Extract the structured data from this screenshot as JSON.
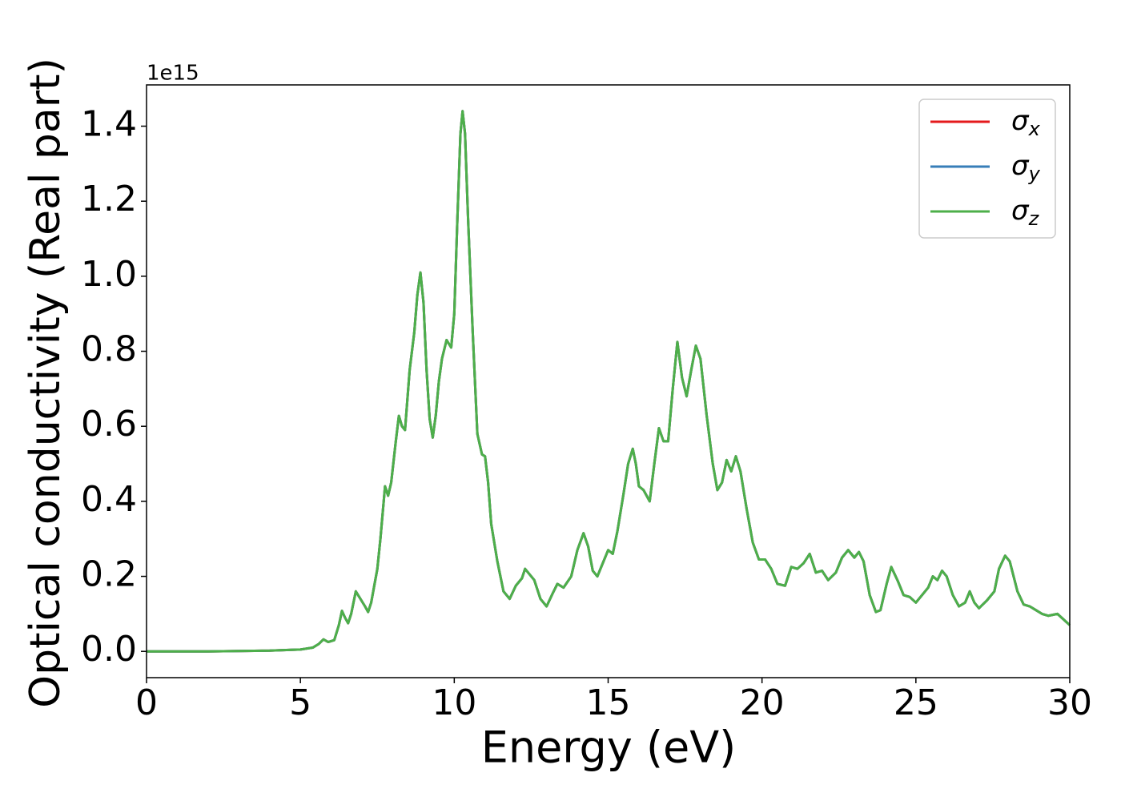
{
  "chart_data": {
    "type": "line",
    "ylabel": "Optical conductivity (Real part)",
    "xlabel": "Energy (eV)",
    "y_offset_label": "1e15",
    "x": [
      0,
      2,
      4,
      5,
      5.4,
      5.6,
      5.75,
      5.9,
      6.1,
      6.25,
      6.35,
      6.45,
      6.55,
      6.65,
      6.8,
      6.95,
      7.1,
      7.2,
      7.3,
      7.5,
      7.6,
      7.75,
      7.85,
      7.95,
      8.1,
      8.2,
      8.3,
      8.4,
      8.55,
      8.7,
      8.8,
      8.9,
      9.0,
      9.1,
      9.2,
      9.3,
      9.4,
      9.5,
      9.6,
      9.75,
      9.9,
      10.0,
      10.1,
      10.2,
      10.27,
      10.35,
      10.45,
      10.6,
      10.75,
      10.9,
      11.0,
      11.1,
      11.2,
      11.4,
      11.6,
      11.8,
      12.0,
      12.2,
      12.3,
      12.45,
      12.6,
      12.8,
      13.0,
      13.2,
      13.35,
      13.55,
      13.8,
      14.0,
      14.2,
      14.35,
      14.5,
      14.65,
      14.8,
      15.0,
      15.15,
      15.3,
      15.5,
      15.65,
      15.8,
      15.9,
      16.0,
      16.15,
      16.35,
      16.5,
      16.65,
      16.8,
      16.95,
      17.1,
      17.25,
      17.4,
      17.55,
      17.7,
      17.85,
      18.0,
      18.2,
      18.4,
      18.55,
      18.7,
      18.85,
      19.0,
      19.15,
      19.3,
      19.5,
      19.7,
      19.9,
      20.1,
      20.3,
      20.5,
      20.75,
      20.95,
      21.15,
      21.35,
      21.55,
      21.75,
      21.95,
      22.15,
      22.4,
      22.6,
      22.8,
      23.0,
      23.15,
      23.3,
      23.5,
      23.7,
      23.85,
      24.05,
      24.2,
      24.4,
      24.6,
      24.8,
      25.0,
      25.2,
      25.4,
      25.55,
      25.7,
      25.85,
      26.0,
      26.2,
      26.4,
      26.6,
      26.75,
      26.9,
      27.05,
      27.3,
      27.55,
      27.7,
      27.9,
      28.05,
      28.3,
      28.5,
      28.7,
      28.9,
      29.1,
      29.3,
      29.6,
      29.8,
      30
    ],
    "series": [
      {
        "name": "σx",
        "color": "#e41a1c",
        "values": [
          0,
          0,
          0.002,
          0.005,
          0.01,
          0.02,
          0.032,
          0.025,
          0.03,
          0.07,
          0.108,
          0.09,
          0.075,
          0.1,
          0.16,
          0.14,
          0.12,
          0.105,
          0.13,
          0.22,
          0.3,
          0.44,
          0.415,
          0.45,
          0.56,
          0.628,
          0.6,
          0.59,
          0.75,
          0.85,
          0.95,
          1.01,
          0.93,
          0.75,
          0.62,
          0.57,
          0.63,
          0.72,
          0.78,
          0.83,
          0.81,
          0.9,
          1.15,
          1.38,
          1.44,
          1.38,
          1.15,
          0.85,
          0.58,
          0.525,
          0.52,
          0.45,
          0.34,
          0.24,
          0.16,
          0.14,
          0.175,
          0.195,
          0.22,
          0.205,
          0.19,
          0.14,
          0.12,
          0.155,
          0.18,
          0.17,
          0.2,
          0.27,
          0.315,
          0.28,
          0.215,
          0.2,
          0.23,
          0.27,
          0.26,
          0.32,
          0.42,
          0.5,
          0.54,
          0.5,
          0.44,
          0.43,
          0.4,
          0.5,
          0.595,
          0.56,
          0.56,
          0.7,
          0.825,
          0.73,
          0.68,
          0.75,
          0.815,
          0.78,
          0.63,
          0.5,
          0.43,
          0.45,
          0.51,
          0.48,
          0.52,
          0.48,
          0.38,
          0.29,
          0.245,
          0.245,
          0.22,
          0.18,
          0.175,
          0.225,
          0.22,
          0.235,
          0.26,
          0.21,
          0.215,
          0.19,
          0.21,
          0.25,
          0.27,
          0.25,
          0.265,
          0.24,
          0.15,
          0.105,
          0.11,
          0.18,
          0.225,
          0.19,
          0.15,
          0.145,
          0.13,
          0.15,
          0.17,
          0.2,
          0.19,
          0.215,
          0.2,
          0.15,
          0.12,
          0.13,
          0.16,
          0.13,
          0.115,
          0.135,
          0.16,
          0.22,
          0.255,
          0.24,
          0.16,
          0.125,
          0.12,
          0.11,
          0.1,
          0.095,
          0.1,
          0.085,
          0.07
        ]
      },
      {
        "name": "σy",
        "color": "#377eb8",
        "values": [
          0,
          0,
          0.002,
          0.005,
          0.01,
          0.02,
          0.032,
          0.025,
          0.03,
          0.07,
          0.108,
          0.09,
          0.075,
          0.1,
          0.16,
          0.14,
          0.12,
          0.105,
          0.13,
          0.22,
          0.3,
          0.44,
          0.415,
          0.45,
          0.56,
          0.628,
          0.6,
          0.59,
          0.75,
          0.85,
          0.95,
          1.01,
          0.93,
          0.75,
          0.62,
          0.57,
          0.63,
          0.72,
          0.78,
          0.83,
          0.81,
          0.9,
          1.15,
          1.38,
          1.44,
          1.38,
          1.15,
          0.85,
          0.58,
          0.525,
          0.52,
          0.45,
          0.34,
          0.24,
          0.16,
          0.14,
          0.175,
          0.195,
          0.22,
          0.205,
          0.19,
          0.14,
          0.12,
          0.155,
          0.18,
          0.17,
          0.2,
          0.27,
          0.315,
          0.28,
          0.215,
          0.2,
          0.23,
          0.27,
          0.26,
          0.32,
          0.42,
          0.5,
          0.54,
          0.5,
          0.44,
          0.43,
          0.4,
          0.5,
          0.595,
          0.56,
          0.56,
          0.7,
          0.825,
          0.73,
          0.68,
          0.75,
          0.815,
          0.78,
          0.63,
          0.5,
          0.43,
          0.45,
          0.51,
          0.48,
          0.52,
          0.48,
          0.38,
          0.29,
          0.245,
          0.245,
          0.22,
          0.18,
          0.175,
          0.225,
          0.22,
          0.235,
          0.26,
          0.21,
          0.215,
          0.19,
          0.21,
          0.25,
          0.27,
          0.25,
          0.265,
          0.24,
          0.15,
          0.105,
          0.11,
          0.18,
          0.225,
          0.19,
          0.15,
          0.145,
          0.13,
          0.15,
          0.17,
          0.2,
          0.19,
          0.215,
          0.2,
          0.15,
          0.12,
          0.13,
          0.16,
          0.13,
          0.115,
          0.135,
          0.16,
          0.22,
          0.255,
          0.24,
          0.16,
          0.125,
          0.12,
          0.11,
          0.1,
          0.095,
          0.1,
          0.085,
          0.07
        ]
      },
      {
        "name": "σz",
        "color": "#4daf4a",
        "values": [
          0,
          0,
          0.002,
          0.005,
          0.01,
          0.02,
          0.032,
          0.025,
          0.03,
          0.07,
          0.108,
          0.09,
          0.075,
          0.1,
          0.16,
          0.14,
          0.12,
          0.105,
          0.13,
          0.22,
          0.3,
          0.44,
          0.415,
          0.45,
          0.56,
          0.628,
          0.6,
          0.59,
          0.75,
          0.85,
          0.95,
          1.01,
          0.93,
          0.75,
          0.62,
          0.57,
          0.63,
          0.72,
          0.78,
          0.83,
          0.81,
          0.9,
          1.15,
          1.38,
          1.44,
          1.38,
          1.15,
          0.85,
          0.58,
          0.525,
          0.52,
          0.45,
          0.34,
          0.24,
          0.16,
          0.14,
          0.175,
          0.195,
          0.22,
          0.205,
          0.19,
          0.14,
          0.12,
          0.155,
          0.18,
          0.17,
          0.2,
          0.27,
          0.315,
          0.28,
          0.215,
          0.2,
          0.23,
          0.27,
          0.26,
          0.32,
          0.42,
          0.5,
          0.54,
          0.5,
          0.44,
          0.43,
          0.4,
          0.5,
          0.595,
          0.56,
          0.56,
          0.7,
          0.825,
          0.73,
          0.68,
          0.75,
          0.815,
          0.78,
          0.63,
          0.5,
          0.43,
          0.45,
          0.51,
          0.48,
          0.52,
          0.48,
          0.38,
          0.29,
          0.245,
          0.245,
          0.22,
          0.18,
          0.175,
          0.225,
          0.22,
          0.235,
          0.26,
          0.21,
          0.215,
          0.19,
          0.21,
          0.25,
          0.27,
          0.25,
          0.265,
          0.24,
          0.15,
          0.105,
          0.11,
          0.18,
          0.225,
          0.19,
          0.15,
          0.145,
          0.13,
          0.15,
          0.17,
          0.2,
          0.19,
          0.215,
          0.2,
          0.15,
          0.12,
          0.13,
          0.16,
          0.13,
          0.115,
          0.135,
          0.16,
          0.22,
          0.255,
          0.24,
          0.16,
          0.125,
          0.12,
          0.11,
          0.1,
          0.095,
          0.1,
          0.085,
          0.07
        ]
      }
    ],
    "xlim": [
      0,
      30
    ],
    "xticks": [
      0,
      5,
      10,
      15,
      20,
      25,
      30
    ],
    "ylim": [
      -0.07,
      1.51
    ],
    "yticks": [
      {
        "value": 0,
        "label": "0.0"
      },
      0.2,
      0.4,
      0.6,
      0.8,
      {
        "value": 1,
        "label": "1.0"
      },
      1.2,
      1.4
    ],
    "legend": "upper right",
    "grid": false
  }
}
